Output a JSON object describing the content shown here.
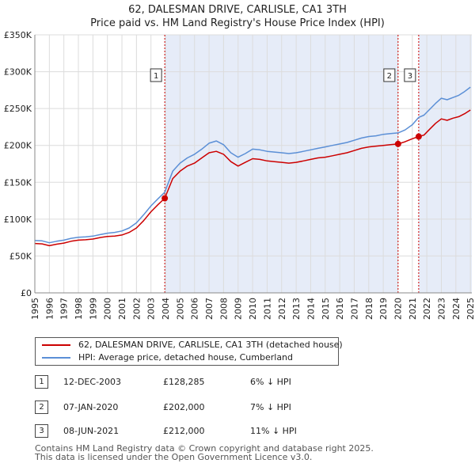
{
  "chart_data": {
    "type": "line",
    "title": "62, DALESMAN DRIVE, CARLISLE, CA1 3TH",
    "subtitle": "Price paid vs. HM Land Registry's House Price Index (HPI)",
    "xlim": [
      1995,
      2025.1
    ],
    "ylim": [
      0,
      350000
    ],
    "x_ticks": [
      1995,
      1996,
      1997,
      1998,
      1999,
      2000,
      2001,
      2002,
      2003,
      2004,
      2005,
      2006,
      2007,
      2008,
      2009,
      2010,
      2011,
      2012,
      2013,
      2014,
      2015,
      2016,
      2017,
      2018,
      2019,
      2020,
      2021,
      2022,
      2023,
      2024,
      2025
    ],
    "y_ticks": [
      0,
      50000,
      100000,
      150000,
      200000,
      250000,
      300000,
      350000
    ],
    "y_tick_labels": [
      "£0",
      "£50K",
      "£100K",
      "£150K",
      "£200K",
      "£250K",
      "£300K",
      "£350K"
    ],
    "series": [
      {
        "name": "62, DALESMAN DRIVE, CARLISLE, CA1 3TH (detached house)",
        "color": "#cc0000",
        "points": [
          [
            1995.0,
            67000
          ],
          [
            1995.5,
            66500
          ],
          [
            1996.0,
            64000
          ],
          [
            1996.5,
            66000
          ],
          [
            1997.0,
            67500
          ],
          [
            1997.5,
            70000
          ],
          [
            1998.0,
            71500
          ],
          [
            1998.5,
            72000
          ],
          [
            1999.0,
            73000
          ],
          [
            1999.5,
            75000
          ],
          [
            2000.0,
            76500
          ],
          [
            2000.5,
            77000
          ],
          [
            2001.0,
            78500
          ],
          [
            2001.5,
            82000
          ],
          [
            2002.0,
            88000
          ],
          [
            2002.5,
            98000
          ],
          [
            2003.0,
            110000
          ],
          [
            2003.5,
            120000
          ],
          [
            2003.95,
            128285
          ],
          [
            2004.5,
            155000
          ],
          [
            2005.0,
            165000
          ],
          [
            2005.5,
            172000
          ],
          [
            2006.0,
            176000
          ],
          [
            2006.5,
            183000
          ],
          [
            2007.0,
            190000
          ],
          [
            2007.5,
            192000
          ],
          [
            2008.0,
            188000
          ],
          [
            2008.5,
            178000
          ],
          [
            2009.0,
            172000
          ],
          [
            2009.5,
            177000
          ],
          [
            2010.0,
            182000
          ],
          [
            2010.5,
            181000
          ],
          [
            2011.0,
            179000
          ],
          [
            2011.5,
            178000
          ],
          [
            2012.0,
            177000
          ],
          [
            2012.5,
            176000
          ],
          [
            2013.0,
            177000
          ],
          [
            2013.5,
            179000
          ],
          [
            2014.0,
            181000
          ],
          [
            2014.5,
            183000
          ],
          [
            2015.0,
            184000
          ],
          [
            2015.5,
            186000
          ],
          [
            2016.0,
            188000
          ],
          [
            2016.5,
            190000
          ],
          [
            2017.0,
            193000
          ],
          [
            2017.5,
            196000
          ],
          [
            2018.0,
            198000
          ],
          [
            2018.5,
            199000
          ],
          [
            2019.0,
            200000
          ],
          [
            2019.5,
            201000
          ],
          [
            2020.02,
            202000
          ],
          [
            2020.5,
            205000
          ],
          [
            2021.0,
            209000
          ],
          [
            2021.44,
            212000
          ],
          [
            2021.8,
            214000
          ],
          [
            2022.2,
            222000
          ],
          [
            2022.6,
            230000
          ],
          [
            2023.0,
            236000
          ],
          [
            2023.4,
            234000
          ],
          [
            2023.8,
            237000
          ],
          [
            2024.2,
            239000
          ],
          [
            2024.6,
            243000
          ],
          [
            2025.0,
            248000
          ]
        ]
      },
      {
        "name": "HPI: Average price, detached house, Cumberland",
        "color": "#5b8fd6",
        "points": [
          [
            1995.0,
            71000
          ],
          [
            1995.5,
            70500
          ],
          [
            1996.0,
            68000
          ],
          [
            1996.5,
            70000
          ],
          [
            1997.0,
            71500
          ],
          [
            1997.5,
            74000
          ],
          [
            1998.0,
            75500
          ],
          [
            1998.5,
            76000
          ],
          [
            1999.0,
            77000
          ],
          [
            1999.5,
            79000
          ],
          [
            2000.0,
            81000
          ],
          [
            2000.5,
            82000
          ],
          [
            2001.0,
            84000
          ],
          [
            2001.5,
            88000
          ],
          [
            2002.0,
            95000
          ],
          [
            2002.5,
            106000
          ],
          [
            2003.0,
            118000
          ],
          [
            2003.5,
            128000
          ],
          [
            2003.95,
            136500
          ],
          [
            2004.5,
            165000
          ],
          [
            2005.0,
            176000
          ],
          [
            2005.5,
            183000
          ],
          [
            2006.0,
            188000
          ],
          [
            2006.5,
            195000
          ],
          [
            2007.0,
            203000
          ],
          [
            2007.5,
            206000
          ],
          [
            2008.0,
            201000
          ],
          [
            2008.5,
            190000
          ],
          [
            2009.0,
            184000
          ],
          [
            2009.5,
            189000
          ],
          [
            2010.0,
            195000
          ],
          [
            2010.5,
            194000
          ],
          [
            2011.0,
            192000
          ],
          [
            2011.5,
            191000
          ],
          [
            2012.0,
            190000
          ],
          [
            2012.5,
            189000
          ],
          [
            2013.0,
            190000
          ],
          [
            2013.5,
            192000
          ],
          [
            2014.0,
            194000
          ],
          [
            2014.5,
            196000
          ],
          [
            2015.0,
            198000
          ],
          [
            2015.5,
            200000
          ],
          [
            2016.0,
            202000
          ],
          [
            2016.5,
            204000
          ],
          [
            2017.0,
            207000
          ],
          [
            2017.5,
            210000
          ],
          [
            2018.0,
            212000
          ],
          [
            2018.5,
            213000
          ],
          [
            2019.0,
            215000
          ],
          [
            2019.5,
            216000
          ],
          [
            2020.02,
            217000
          ],
          [
            2020.5,
            221000
          ],
          [
            2021.0,
            228000
          ],
          [
            2021.44,
            238000
          ],
          [
            2021.8,
            241000
          ],
          [
            2022.2,
            249000
          ],
          [
            2022.6,
            257000
          ],
          [
            2023.0,
            264000
          ],
          [
            2023.4,
            262000
          ],
          [
            2023.8,
            265000
          ],
          [
            2024.2,
            268000
          ],
          [
            2024.6,
            273000
          ],
          [
            2025.0,
            279000
          ]
        ]
      }
    ],
    "markers": [
      {
        "label": "1",
        "x": 2003.95,
        "y": 128285
      },
      {
        "label": "2",
        "x": 2020.02,
        "y": 202000
      },
      {
        "label": "3",
        "x": 2021.44,
        "y": 212000
      }
    ],
    "shaded_ranges": [
      [
        2003.95,
        2020.02
      ],
      [
        2021.44,
        2025.1
      ]
    ]
  },
  "legend": {
    "items": [
      {
        "label": "62, DALESMAN DRIVE, CARLISLE, CA1 3TH (detached house)",
        "color": "#cc0000"
      },
      {
        "label": "HPI: Average price, detached house, Cumberland",
        "color": "#5b8fd6"
      }
    ]
  },
  "transactions": [
    {
      "num": "1",
      "date": "12-DEC-2003",
      "price": "£128,285",
      "hpi": "6% ↓ HPI"
    },
    {
      "num": "2",
      "date": "07-JAN-2020",
      "price": "£202,000",
      "hpi": "7% ↓ HPI"
    },
    {
      "num": "3",
      "date": "08-JUN-2021",
      "price": "£212,000",
      "hpi": "11% ↓ HPI"
    }
  ],
  "footer": {
    "line1": "Contains HM Land Registry data © Crown copyright and database right 2025.",
    "line2": "This data is licensed under the Open Government Licence v3.0."
  }
}
